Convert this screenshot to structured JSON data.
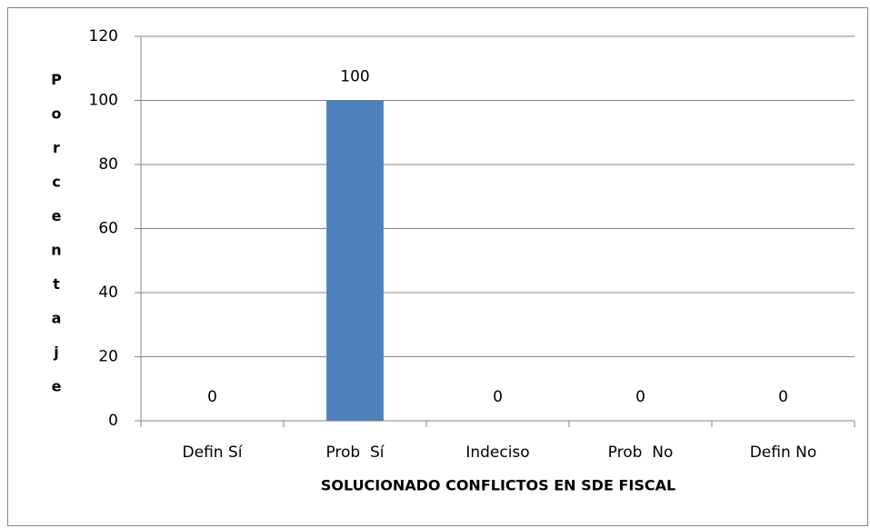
{
  "chart_data": {
    "type": "bar",
    "categories": [
      "Defin Sí",
      "Prob  Sí",
      "Indeciso",
      "Prob  No",
      "Defin No"
    ],
    "values": [
      0,
      100,
      0,
      0,
      0
    ],
    "color": "#4f81bd",
    "ylim": [
      0,
      120
    ],
    "yticks": [
      0,
      20,
      40,
      60,
      80,
      100,
      120
    ],
    "grid": true,
    "y_label": "Porcentaje",
    "x_label": "SOLUCIONADO CONFLICTOS EN SDE FISCAL"
  }
}
